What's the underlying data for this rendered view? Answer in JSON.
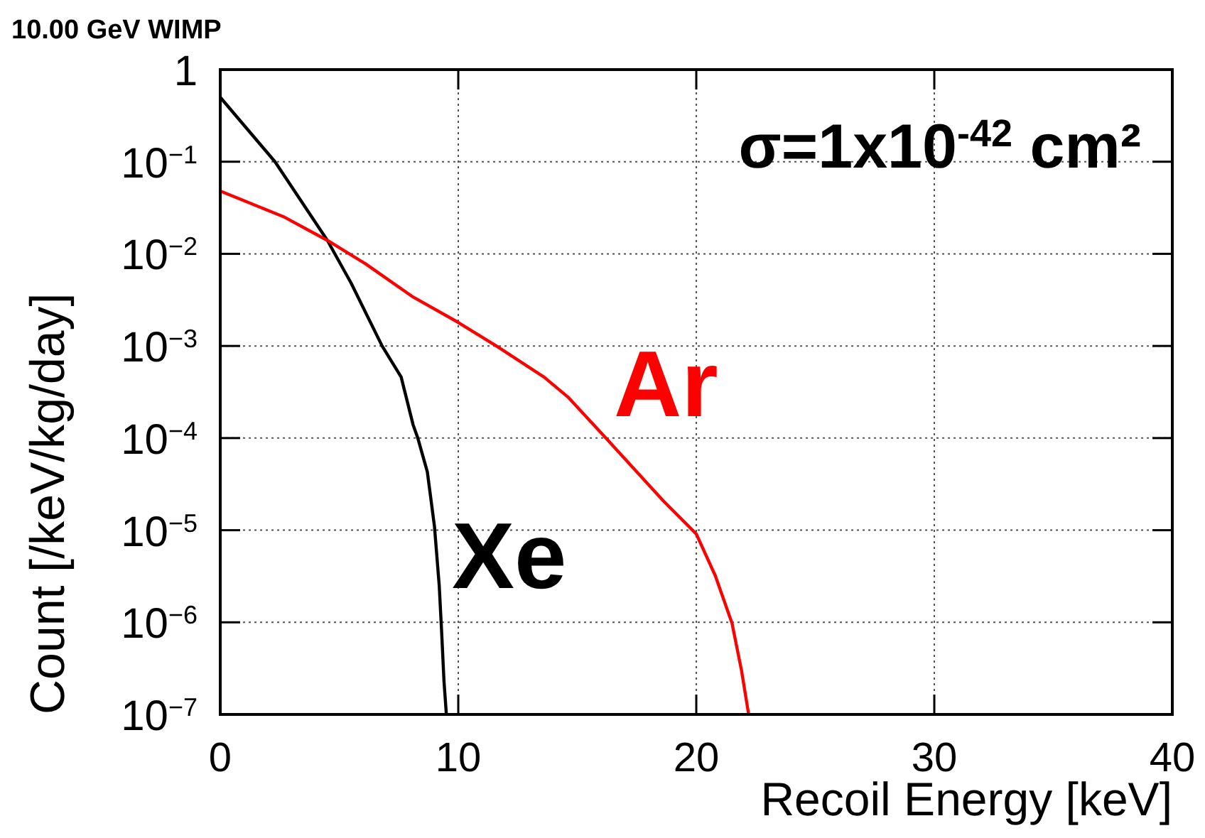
{
  "chart_data": {
    "type": "line",
    "title": "10.00 GeV WIMP",
    "xlabel": "Recoil Energy [keV]",
    "ylabel": "Count [/keV/kg/day]",
    "annotations": [
      "σ=1x10$^{-42}$ cm²"
    ],
    "xlim": [
      0,
      40
    ],
    "xticks": [
      0,
      10,
      20,
      30,
      40
    ],
    "ylim": [
      1e-07,
      1
    ],
    "log": "y",
    "yticks": [
      {
        "value": 1,
        "label": "1"
      },
      {
        "value": 0.1,
        "label": "10$^{−1}$"
      },
      {
        "value": 0.01,
        "label": "10$^{−2}$"
      },
      {
        "value": 0.001,
        "label": "10$^{−3}$"
      },
      {
        "value": 0.0001,
        "label": "10$^{−4}$"
      },
      {
        "value": 1e-05,
        "label": "10$^{−5}$"
      },
      {
        "value": 1e-06,
        "label": "10$^{−6}$"
      },
      {
        "value": 1e-07,
        "label": "10$^{−7}$"
      }
    ],
    "grid": true,
    "marker": "none",
    "line_style": "solid",
    "series": [
      {
        "name": "Xe",
        "color": "#000000",
        "x": [
          0,
          2.3,
          4.5,
          5.5,
          6.8,
          7.6,
          8.1,
          8.3,
          8.7,
          9.0,
          9.2,
          9.3,
          9.4,
          9.5
        ],
        "values": [
          0.5,
          0.1,
          0.014,
          0.0048,
          0.001,
          0.00046,
          0.00014,
          0.0001,
          4.3e-05,
          1.1e-05,
          2.5e-06,
          8e-07,
          2.3e-07,
          1e-07
        ]
      },
      {
        "name": "Ar",
        "color": "#ff0000",
        "x": [
          0,
          2.7,
          4.5,
          6.1,
          8.1,
          10,
          11.6,
          13.6,
          14.6,
          16.2,
          18.6,
          20,
          20.8,
          21.5,
          21.9,
          22.2
        ],
        "values": [
          0.048,
          0.025,
          0.014,
          0.0078,
          0.0034,
          0.0018,
          0.001,
          0.00046,
          0.00028,
          0.0001,
          2.1e-05,
          9.1e-06,
          3.2e-06,
          9.8e-07,
          3e-07,
          1e-07
        ]
      }
    ]
  }
}
